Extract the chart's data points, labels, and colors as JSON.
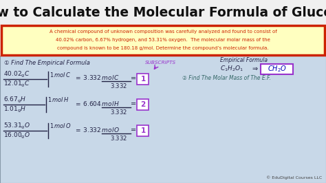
{
  "title": "How to Calculate the Molecular Formula of Glucose",
  "title_fontsize": 13.5,
  "title_color": "#111111",
  "title_bg": "#f0f0f0",
  "problem_text_line1": "A chemical compound of unknown composition was carefully analyzed and found to consist of",
  "problem_text_line2": "40.02% carbon, 6.67% hydrogen, and 53.31% oxygen.  The molecular molar mass of the",
  "problem_text_line3": "compound is known to be 180.18 g/mol. Determine the compound’s molecular formula.",
  "problem_box_bg": "#ffffc0",
  "problem_box_border": "#cc2200",
  "problem_text_color": "#cc2200",
  "watermark": "© EduDigital Courses LLC",
  "main_bg": "#c8d8e8",
  "content_border": "#8899aa",
  "handwrite_color": "#222244",
  "purple_color": "#9933cc",
  "teal_color": "#009999",
  "step2_color": "#336666"
}
